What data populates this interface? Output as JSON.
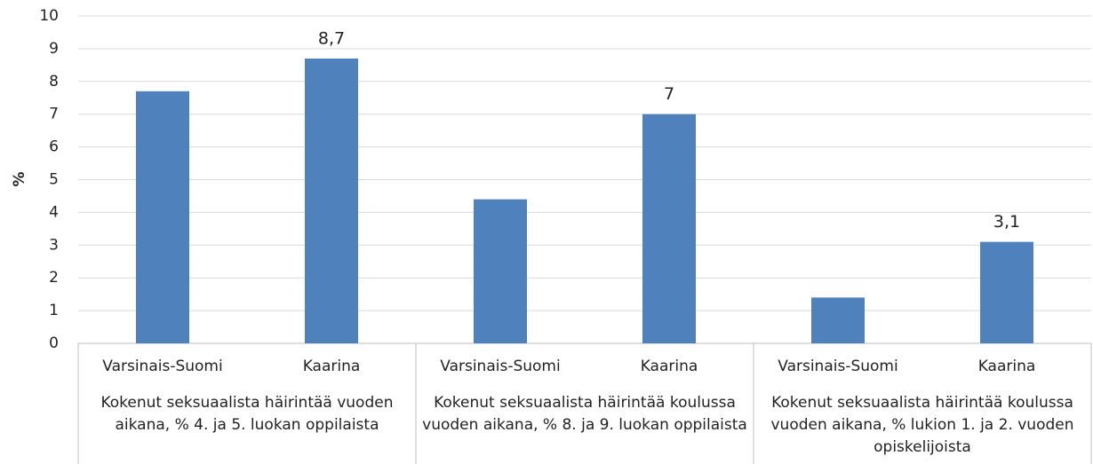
{
  "chart_data": {
    "type": "bar",
    "ylabel": "%",
    "categories": [
      "Varsinais-Suomi",
      "Kaarina",
      "Varsinais-Suomi",
      "Kaarina",
      "Varsinais-Suomi",
      "Kaarina"
    ],
    "groups": [
      "Kokenut seksuaalista häirintää vuoden aikana, % 4. ja 5. luokan oppilaista",
      "Kokenut seksuaalista häirintää koulussa vuoden aikana, % 8. ja 9. luokan oppilaista",
      "Kokenut seksuaalista häirintää koulussa vuoden aikana, % lukion 1. ja 2. vuoden opiskelijoista"
    ],
    "values": [
      7.7,
      8.7,
      4.4,
      7.0,
      1.4,
      3.1
    ],
    "value_labels": [
      null,
      "8,7",
      null,
      "7",
      null,
      "3,1"
    ],
    "color": "#4f81bd",
    "ylim": [
      0,
      10
    ],
    "yticks": [
      0,
      1,
      2,
      3,
      4,
      5,
      6,
      7,
      8,
      9,
      10
    ],
    "grid": true
  }
}
